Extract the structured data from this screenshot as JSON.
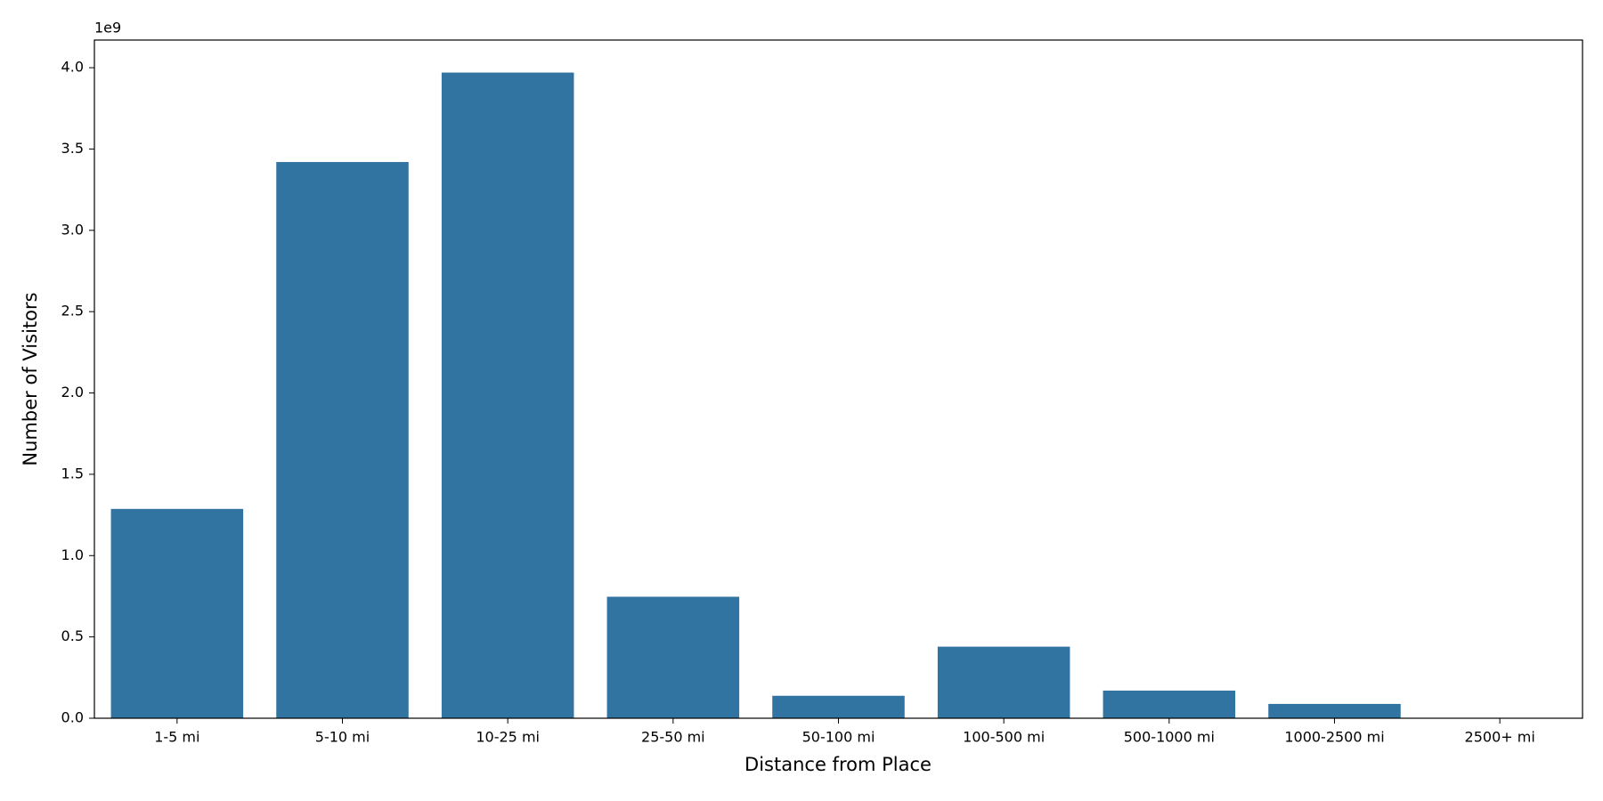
{
  "chart_data": {
    "type": "bar",
    "x_label": "Distance from Place",
    "y_label": "Number of Visitors",
    "y_offset_label": "1e9",
    "categories": [
      "1-5 mi",
      "5-10 mi",
      "10-25 mi",
      "25-50 mi",
      "50-100 mi",
      "100-500 mi",
      "500-1000 mi",
      "1000-2500 mi",
      "2500+ mi"
    ],
    "values": [
      1.287,
      3.42,
      3.97,
      0.747,
      0.138,
      0.44,
      0.17,
      0.088,
      0
    ],
    "color": "#3274a1",
    "ylim": [
      0,
      4.17
    ],
    "yticks": [
      {
        "value": 0,
        "label": "0.0"
      },
      {
        "value": 0.5,
        "label": "0.5"
      },
      {
        "value": 1,
        "label": "1.0"
      },
      {
        "value": 1.5,
        "label": "1.5"
      },
      {
        "value": 2,
        "label": "2.0"
      },
      {
        "value": 2.5,
        "label": "2.5"
      },
      {
        "value": 3,
        "label": "3.0"
      },
      {
        "value": 3.5,
        "label": "3.5"
      },
      {
        "value": 4,
        "label": "4.0"
      }
    ],
    "grid": false
  }
}
